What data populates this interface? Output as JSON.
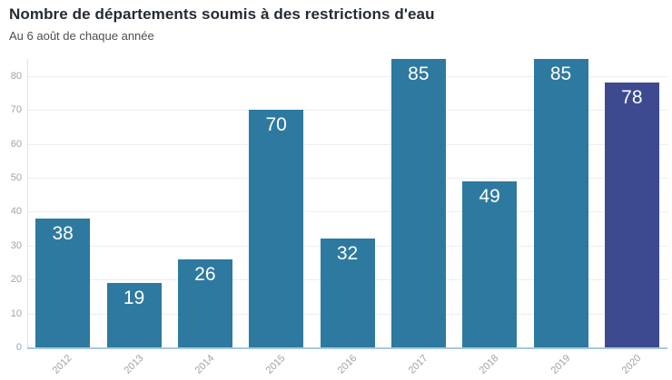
{
  "header": {
    "title": "Nombre de départements soumis à des restrictions d'eau",
    "subtitle": "Au 6 août de chaque année"
  },
  "chart_data": {
    "type": "bar",
    "title": "Nombre de départements soumis à des restrictions d'eau",
    "subtitle": "Au 6 août de chaque année",
    "categories": [
      "2012",
      "2013",
      "2014",
      "2015",
      "2016",
      "2017",
      "2018",
      "2019",
      "2020"
    ],
    "values": [
      38,
      19,
      26,
      70,
      32,
      85,
      49,
      85,
      78
    ],
    "xlabel": "",
    "ylabel": "",
    "ylim": [
      0,
      85
    ],
    "yticks": [
      0,
      10,
      20,
      30,
      40,
      50,
      60,
      70,
      80
    ],
    "grid": true,
    "legend": "none",
    "value_labels": "inside-top",
    "colors": {
      "bar_default": "#2e79a0",
      "bar_highlight": "#3e4a90",
      "highlight_index": 8,
      "zero_line": "#a6c9dc",
      "gridline": "#ebeef2",
      "tick_text": "#9aa4ae",
      "title_text": "#242b33",
      "subtitle_text": "#4e4e4e"
    }
  }
}
